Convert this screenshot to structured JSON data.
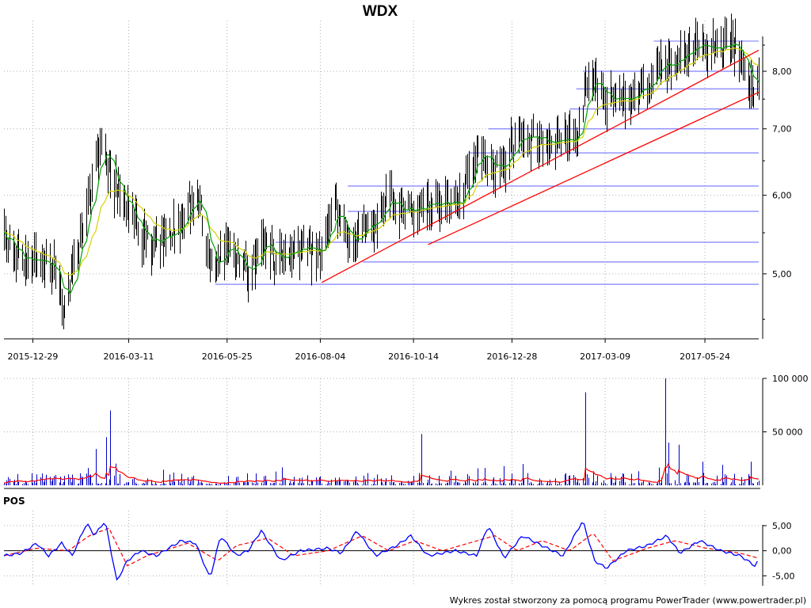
{
  "title": "WDX",
  "footer": "Wykres został stworzony za pomocą programu PowerTrader (www.powertrader.pl)",
  "chart_data": [
    {
      "type": "line",
      "panel": "price",
      "y_scale": "log",
      "ylim": [
        4.3,
        8.9
      ],
      "y_ticks": [
        {
          "v": 5.0,
          "label": "5,00"
        },
        {
          "v": 6.0,
          "label": "6,00"
        },
        {
          "v": 7.0,
          "label": "7,00"
        },
        {
          "v": 8.0,
          "label": "8,00"
        }
      ],
      "x_ticks": [
        "2015-12-29",
        "2016-03-11",
        "2016-05-25",
        "2016-08-04",
        "2016-10-14",
        "2016-12-28",
        "2017-03-09",
        "2017-05-24"
      ],
      "x_range": [
        "2015-12-07",
        "2017-07-04"
      ],
      "grid": true,
      "colors": {
        "price": "#000000",
        "ma_short": "#00a000",
        "ma_long": "#d4d400",
        "support": "#8080ff",
        "trend": "#ff0000"
      },
      "price_points": [
        [
          "2015-12-07",
          5.5
        ],
        [
          "2015-12-15",
          5.25
        ],
        [
          "2015-12-28",
          5.1
        ],
        [
          "2016-01-08",
          5.2
        ],
        [
          "2016-01-15",
          5.05
        ],
        [
          "2016-01-22",
          4.6
        ],
        [
          "2016-02-01",
          5.3
        ],
        [
          "2016-02-10",
          5.9
        ],
        [
          "2016-02-20",
          6.9
        ],
        [
          "2016-02-27",
          6.2
        ],
        [
          "2016-03-08",
          5.9
        ],
        [
          "2016-03-18",
          5.55
        ],
        [
          "2016-03-28",
          5.4
        ],
        [
          "2016-04-08",
          5.45
        ],
        [
          "2016-04-18",
          5.6
        ],
        [
          "2016-04-27",
          5.95
        ],
        [
          "2016-05-04",
          5.9
        ],
        [
          "2016-05-09",
          5.2
        ],
        [
          "2016-05-16",
          5.0
        ],
        [
          "2016-05-24",
          5.4
        ],
        [
          "2016-06-03",
          5.1
        ],
        [
          "2016-06-13",
          5.05
        ],
        [
          "2016-06-22",
          5.5
        ],
        [
          "2016-07-01",
          5.1
        ],
        [
          "2016-07-10",
          5.3
        ],
        [
          "2016-07-25",
          5.3
        ],
        [
          "2016-08-05",
          5.25
        ],
        [
          "2016-08-15",
          5.85
        ],
        [
          "2016-08-25",
          5.5
        ],
        [
          "2016-09-05",
          5.45
        ],
        [
          "2016-09-15",
          5.6
        ],
        [
          "2016-09-25",
          6.0
        ],
        [
          "2016-10-05",
          5.8
        ],
        [
          "2016-10-16",
          5.85
        ],
        [
          "2016-10-26",
          5.85
        ],
        [
          "2016-11-08",
          5.9
        ],
        [
          "2016-11-20",
          5.95
        ],
        [
          "2016-12-01",
          6.6
        ],
        [
          "2016-12-10",
          6.35
        ],
        [
          "2016-12-22",
          6.5
        ],
        [
          "2017-01-01",
          6.85
        ],
        [
          "2017-01-15",
          6.85
        ],
        [
          "2017-02-01",
          6.85
        ],
        [
          "2017-02-15",
          6.8
        ],
        [
          "2017-02-25",
          7.9
        ],
        [
          "2017-03-05",
          7.6
        ],
        [
          "2017-03-15",
          7.45
        ],
        [
          "2017-03-28",
          7.55
        ],
        [
          "2017-04-10",
          7.7
        ],
        [
          "2017-04-20",
          8.15
        ],
        [
          "2017-05-01",
          8.15
        ],
        [
          "2017-05-10",
          8.45
        ],
        [
          "2017-05-22",
          8.5
        ],
        [
          "2017-06-01",
          8.4
        ],
        [
          "2017-06-12",
          8.45
        ],
        [
          "2017-06-20",
          8.3
        ],
        [
          "2017-06-25",
          7.9
        ],
        [
          "2017-07-01",
          7.6
        ],
        [
          "2017-07-04",
          7.95
        ]
      ],
      "support_lines": [
        {
          "y": 4.88,
          "from": "2016-05-16",
          "to": "2017-07-04"
        },
        {
          "y": 5.14,
          "from": "2016-09-05",
          "to": "2017-07-04"
        },
        {
          "y": 5.38,
          "from": "2016-07-01",
          "to": "2017-07-04"
        },
        {
          "y": 5.78,
          "from": "2016-08-25",
          "to": "2017-07-04"
        },
        {
          "y": 6.13,
          "from": "2016-08-25",
          "to": "2017-07-04"
        },
        {
          "y": 6.62,
          "from": "2016-11-25",
          "to": "2017-07-04"
        },
        {
          "y": 7.0,
          "from": "2016-12-10",
          "to": "2017-07-04"
        },
        {
          "y": 7.33,
          "from": "2017-02-10",
          "to": "2017-07-04"
        },
        {
          "y": 7.68,
          "from": "2017-02-15",
          "to": "2017-07-04"
        },
        {
          "y": 8.0,
          "from": "2017-02-20",
          "to": "2017-07-04"
        },
        {
          "y": 8.58,
          "from": "2017-04-15",
          "to": "2017-07-04"
        }
      ],
      "trend_lines": [
        {
          "from": [
            "2016-08-05",
            4.9
          ],
          "to": [
            "2017-07-04",
            8.4
          ]
        },
        {
          "from": [
            "2016-10-25",
            5.35
          ],
          "to": [
            "2017-07-04",
            7.62
          ]
        }
      ]
    },
    {
      "type": "bar",
      "panel": "volume",
      "ylim": [
        0,
        100000
      ],
      "y_ticks": [
        {
          "v": 50000,
          "label": "50 000"
        },
        {
          "v": 100000,
          "label": "100 000"
        }
      ],
      "colors": {
        "bars": "#0000c8",
        "average": "#ff0000"
      },
      "spikes": [
        [
          "2016-01-23",
          40000
        ],
        [
          "2016-02-15",
          34000
        ],
        [
          "2016-02-23",
          45000
        ],
        [
          "2016-02-26",
          70000
        ],
        [
          "2016-10-20",
          48000
        ],
        [
          "2016-12-10",
          57000
        ],
        [
          "2016-12-22",
          18000
        ],
        [
          "2017-02-22",
          87000
        ],
        [
          "2017-04-24",
          100000
        ],
        [
          "2017-04-26",
          40000
        ],
        [
          "2017-05-04",
          38000
        ],
        [
          "2017-05-22",
          22000
        ],
        [
          "2017-06-28",
          22000
        ]
      ]
    },
    {
      "type": "line",
      "panel": "oscillator",
      "label": "POS",
      "ylim": [
        -7,
        8
      ],
      "y_ticks": [
        {
          "v": 5,
          "label": "5,00"
        },
        {
          "v": 0,
          "label": "0,00"
        },
        {
          "v": -5,
          "label": "-5,00"
        }
      ],
      "colors": {
        "pos": "#0000ff",
        "signal": "#ff0000",
        "zero": "#000000"
      },
      "pos_points": [
        [
          "2015-12-07",
          -1
        ],
        [
          "2015-12-20",
          -0.5
        ],
        [
          "2016-01-01",
          1.5
        ],
        [
          "2016-01-10",
          -1
        ],
        [
          "2016-01-20",
          1.5
        ],
        [
          "2016-01-28",
          -1
        ],
        [
          "2016-02-08",
          5.5
        ],
        [
          "2016-02-14",
          3
        ],
        [
          "2016-02-22",
          6
        ],
        [
          "2016-03-02",
          -6
        ],
        [
          "2016-03-10",
          -2
        ],
        [
          "2016-03-20",
          0
        ],
        [
          "2016-04-01",
          -1
        ],
        [
          "2016-04-20",
          2
        ],
        [
          "2016-05-01",
          1.5
        ],
        [
          "2016-05-12",
          -5.5
        ],
        [
          "2016-05-20",
          3
        ],
        [
          "2016-06-01",
          -1
        ],
        [
          "2016-06-10",
          0
        ],
        [
          "2016-06-20",
          4
        ],
        [
          "2016-07-05",
          -2
        ],
        [
          "2016-07-20",
          0
        ],
        [
          "2016-08-10",
          0.5
        ],
        [
          "2016-08-20",
          -0.5
        ],
        [
          "2016-09-01",
          4
        ],
        [
          "2016-09-15",
          -1
        ],
        [
          "2016-10-01",
          1
        ],
        [
          "2016-10-12",
          3
        ],
        [
          "2016-10-25",
          -1
        ],
        [
          "2016-11-15",
          0
        ],
        [
          "2016-12-01",
          -1
        ],
        [
          "2016-12-10",
          5
        ],
        [
          "2016-12-22",
          -1.5
        ],
        [
          "2017-01-05",
          3
        ],
        [
          "2017-01-20",
          1
        ],
        [
          "2017-02-05",
          -1
        ],
        [
          "2017-02-20",
          6
        ],
        [
          "2017-03-01",
          -2
        ],
        [
          "2017-03-10",
          -3.5
        ],
        [
          "2017-03-25",
          0
        ],
        [
          "2017-04-10",
          1
        ],
        [
          "2017-04-25",
          3
        ],
        [
          "2017-05-05",
          -0.5
        ],
        [
          "2017-05-20",
          2
        ],
        [
          "2017-06-05",
          0
        ],
        [
          "2017-06-20",
          -1
        ],
        [
          "2017-07-01",
          -3
        ],
        [
          "2017-07-04",
          -2
        ]
      ],
      "signal_points": [
        [
          "2015-12-07",
          -1
        ],
        [
          "2016-01-01",
          0.5
        ],
        [
          "2016-01-25",
          0
        ],
        [
          "2016-02-10",
          3
        ],
        [
          "2016-02-25",
          4.5
        ],
        [
          "2016-03-10",
          -3
        ],
        [
          "2016-03-25",
          -1
        ],
        [
          "2016-04-25",
          1.5
        ],
        [
          "2016-05-18",
          -2
        ],
        [
          "2016-06-01",
          1
        ],
        [
          "2016-06-25",
          2.5
        ],
        [
          "2016-07-15",
          -1
        ],
        [
          "2016-08-10",
          0
        ],
        [
          "2016-09-05",
          3
        ],
        [
          "2016-09-25",
          0
        ],
        [
          "2016-10-15",
          2
        ],
        [
          "2016-11-05",
          0
        ],
        [
          "2016-12-15",
          3
        ],
        [
          "2017-01-01",
          0
        ],
        [
          "2017-01-20",
          2
        ],
        [
          "2017-02-10",
          0
        ],
        [
          "2017-02-28",
          3.5
        ],
        [
          "2017-03-15",
          -2
        ],
        [
          "2017-04-10",
          0.5
        ],
        [
          "2017-05-01",
          2
        ],
        [
          "2017-05-25",
          0.5
        ],
        [
          "2017-06-20",
          -0.5
        ],
        [
          "2017-07-04",
          -1.5
        ]
      ]
    }
  ]
}
